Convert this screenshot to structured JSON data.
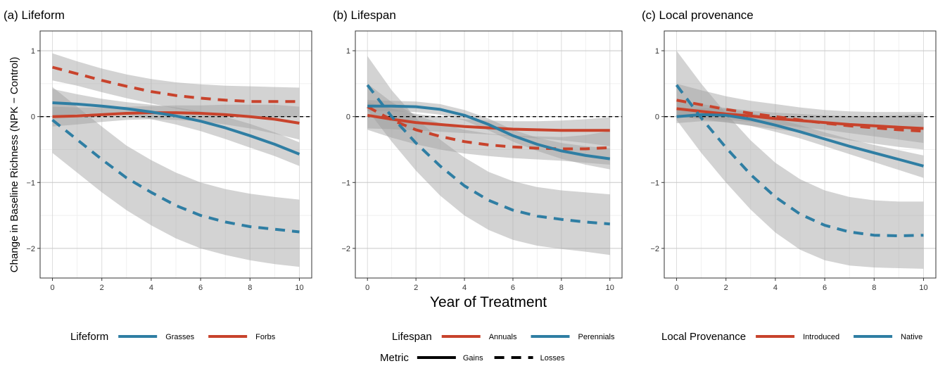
{
  "figure": {
    "ylabel": "Change in Baseline Richness (NPK − Control)",
    "xlabel": "Year of Treatment"
  },
  "colors": {
    "red": "#c8432c",
    "blue": "#2f7ea3",
    "ribbon": "#9e9e9e"
  },
  "chart_data": [
    {
      "type": "line",
      "title": "(a) Lifeform",
      "xlim": [
        -0.5,
        10.5
      ],
      "ylim": [
        -2.45,
        1.3
      ],
      "xticks": [
        0,
        2,
        4,
        6,
        8,
        10
      ],
      "yticks": [
        -2,
        -1,
        0,
        1
      ],
      "x": [
        0,
        1,
        2,
        3,
        4,
        5,
        6,
        7,
        8,
        9,
        10
      ],
      "legend": {
        "title": "Lifeform",
        "items": [
          {
            "label": "Grasses",
            "color": "blue"
          },
          {
            "label": "Forbs",
            "color": "red"
          }
        ]
      },
      "series": [
        {
          "group": "Forbs",
          "metric": "Gains",
          "color": "red",
          "dashed": false,
          "values": [
            0.0,
            0.01,
            0.03,
            0.05,
            0.06,
            0.06,
            0.05,
            0.03,
            0.0,
            -0.04,
            -0.1
          ],
          "lower": [
            -0.15,
            -0.12,
            -0.08,
            -0.05,
            -0.04,
            -0.05,
            -0.07,
            -0.12,
            -0.18,
            -0.26,
            -0.35
          ],
          "upper": [
            0.15,
            0.14,
            0.14,
            0.15,
            0.16,
            0.17,
            0.17,
            0.18,
            0.18,
            0.18,
            0.15
          ]
        },
        {
          "group": "Forbs",
          "metric": "Losses",
          "color": "red",
          "dashed": true,
          "values": [
            0.75,
            0.65,
            0.55,
            0.46,
            0.38,
            0.32,
            0.28,
            0.25,
            0.23,
            0.23,
            0.23
          ],
          "lower": [
            0.55,
            0.47,
            0.37,
            0.28,
            0.2,
            0.12,
            0.06,
            0.02,
            0.0,
            -0.01,
            0.0
          ],
          "upper": [
            0.96,
            0.84,
            0.73,
            0.64,
            0.57,
            0.52,
            0.49,
            0.47,
            0.46,
            0.45,
            0.44
          ]
        },
        {
          "group": "Grasses",
          "metric": "Gains",
          "color": "blue",
          "dashed": false,
          "values": [
            0.21,
            0.19,
            0.16,
            0.12,
            0.07,
            0.01,
            -0.07,
            -0.17,
            -0.29,
            -0.42,
            -0.57
          ],
          "lower": [
            0.0,
            0.04,
            0.05,
            0.02,
            -0.04,
            -0.12,
            -0.22,
            -0.34,
            -0.47,
            -0.6,
            -0.75
          ],
          "upper": [
            0.42,
            0.34,
            0.27,
            0.22,
            0.18,
            0.14,
            0.08,
            0.0,
            -0.11,
            -0.24,
            -0.39
          ]
        },
        {
          "group": "Grasses",
          "metric": "Losses",
          "color": "blue",
          "dashed": true,
          "values": [
            -0.05,
            -0.35,
            -0.65,
            -0.93,
            -1.15,
            -1.35,
            -1.5,
            -1.6,
            -1.67,
            -1.71,
            -1.75
          ],
          "lower": [
            -0.55,
            -0.85,
            -1.15,
            -1.42,
            -1.65,
            -1.85,
            -2.0,
            -2.1,
            -2.18,
            -2.24,
            -2.28
          ],
          "upper": [
            0.45,
            0.15,
            -0.15,
            -0.44,
            -0.66,
            -0.85,
            -1.0,
            -1.1,
            -1.17,
            -1.22,
            -1.26
          ]
        }
      ]
    },
    {
      "type": "line",
      "title": "(b) Lifespan",
      "xlim": [
        -0.5,
        10.5
      ],
      "ylim": [
        -2.45,
        1.3
      ],
      "xticks": [
        0,
        2,
        4,
        6,
        8,
        10
      ],
      "yticks": [
        -2,
        -1,
        0,
        1
      ],
      "x": [
        0,
        1,
        2,
        3,
        4,
        5,
        6,
        7,
        8,
        9,
        10
      ],
      "legend": {
        "title": "Lifespan",
        "items": [
          {
            "label": "Annuals",
            "color": "red"
          },
          {
            "label": "Perennials",
            "color": "blue"
          }
        ]
      },
      "series": [
        {
          "group": "Annuals",
          "metric": "Gains",
          "color": "red",
          "dashed": false,
          "values": [
            0.02,
            -0.04,
            -0.09,
            -0.12,
            -0.15,
            -0.17,
            -0.19,
            -0.2,
            -0.21,
            -0.21,
            -0.21
          ],
          "lower": [
            -0.18,
            -0.19,
            -0.21,
            -0.23,
            -0.25,
            -0.27,
            -0.3,
            -0.33,
            -0.36,
            -0.4,
            -0.45
          ],
          "upper": [
            0.22,
            0.12,
            0.04,
            0.0,
            -0.04,
            -0.06,
            -0.07,
            -0.07,
            -0.06,
            -0.04,
            -0.01
          ]
        },
        {
          "group": "Annuals",
          "metric": "Losses",
          "color": "red",
          "dashed": true,
          "values": [
            0.15,
            -0.05,
            -0.2,
            -0.3,
            -0.38,
            -0.43,
            -0.46,
            -0.48,
            -0.49,
            -0.49,
            -0.47
          ],
          "lower": [
            -0.2,
            -0.32,
            -0.42,
            -0.5,
            -0.56,
            -0.6,
            -0.63,
            -0.65,
            -0.67,
            -0.7,
            -0.73
          ],
          "upper": [
            0.5,
            0.22,
            0.02,
            -0.1,
            -0.2,
            -0.26,
            -0.29,
            -0.3,
            -0.31,
            -0.28,
            -0.22
          ]
        },
        {
          "group": "Perennials",
          "metric": "Gains",
          "color": "blue",
          "dashed": false,
          "values": [
            0.16,
            0.16,
            0.15,
            0.11,
            0.02,
            -0.12,
            -0.29,
            -0.42,
            -0.52,
            -0.59,
            -0.64
          ],
          "lower": [
            0.08,
            0.08,
            0.07,
            0.03,
            -0.06,
            -0.21,
            -0.38,
            -0.52,
            -0.64,
            -0.73,
            -0.8
          ],
          "upper": [
            0.25,
            0.24,
            0.23,
            0.19,
            0.1,
            -0.03,
            -0.2,
            -0.32,
            -0.4,
            -0.45,
            -0.48
          ]
        },
        {
          "group": "Perennials",
          "metric": "Losses",
          "color": "blue",
          "dashed": true,
          "values": [
            0.48,
            0.0,
            -0.4,
            -0.75,
            -1.05,
            -1.27,
            -1.42,
            -1.51,
            -1.56,
            -1.6,
            -1.63
          ],
          "lower": [
            0.1,
            -0.38,
            -0.82,
            -1.2,
            -1.5,
            -1.72,
            -1.87,
            -1.96,
            -2.01,
            -2.05,
            -2.1
          ],
          "upper": [
            0.92,
            0.4,
            -0.02,
            -0.35,
            -0.62,
            -0.84,
            -0.98,
            -1.07,
            -1.12,
            -1.15,
            -1.18
          ]
        }
      ]
    },
    {
      "type": "line",
      "title": "(c) Local provenance",
      "xlim": [
        -0.5,
        10.5
      ],
      "ylim": [
        -2.45,
        1.3
      ],
      "xticks": [
        0,
        2,
        4,
        6,
        8,
        10
      ],
      "yticks": [
        -2,
        -1,
        0,
        1
      ],
      "x": [
        0,
        1,
        2,
        3,
        4,
        5,
        6,
        7,
        8,
        9,
        10
      ],
      "legend": {
        "title": "Local Provenance",
        "items": [
          {
            "label": "Introduced",
            "color": "red"
          },
          {
            "label": "Native",
            "color": "blue"
          }
        ]
      },
      "series": [
        {
          "group": "Introduced",
          "metric": "Gains",
          "color": "red",
          "dashed": false,
          "values": [
            0.12,
            0.08,
            0.04,
            0.01,
            -0.03,
            -0.06,
            -0.09,
            -0.12,
            -0.14,
            -0.16,
            -0.18
          ],
          "lower": [
            0.0,
            -0.02,
            -0.05,
            -0.08,
            -0.12,
            -0.16,
            -0.2,
            -0.25,
            -0.3,
            -0.35,
            -0.4
          ],
          "upper": [
            0.25,
            0.19,
            0.13,
            0.09,
            0.06,
            0.04,
            0.02,
            0.01,
            0.01,
            0.02,
            0.04
          ]
        },
        {
          "group": "Introduced",
          "metric": "Losses",
          "color": "red",
          "dashed": true,
          "values": [
            0.25,
            0.18,
            0.11,
            0.05,
            0.0,
            -0.05,
            -0.1,
            -0.14,
            -0.17,
            -0.2,
            -0.22
          ],
          "lower": [
            0.0,
            -0.04,
            -0.09,
            -0.14,
            -0.19,
            -0.24,
            -0.3,
            -0.36,
            -0.41,
            -0.46,
            -0.5
          ],
          "upper": [
            0.5,
            0.4,
            0.31,
            0.24,
            0.19,
            0.14,
            0.1,
            0.08,
            0.07,
            0.07,
            0.07
          ]
        },
        {
          "group": "Native",
          "metric": "Gains",
          "color": "blue",
          "dashed": false,
          "values": [
            0.0,
            0.03,
            0.02,
            -0.04,
            -0.13,
            -0.23,
            -0.34,
            -0.45,
            -0.55,
            -0.65,
            -0.75
          ],
          "lower": [
            -0.1,
            -0.07,
            -0.08,
            -0.14,
            -0.23,
            -0.33,
            -0.45,
            -0.57,
            -0.69,
            -0.81,
            -0.93
          ],
          "upper": [
            0.1,
            0.13,
            0.12,
            0.06,
            -0.03,
            -0.13,
            -0.24,
            -0.34,
            -0.43,
            -0.51,
            -0.59
          ]
        },
        {
          "group": "Native",
          "metric": "Losses",
          "color": "blue",
          "dashed": true,
          "values": [
            0.48,
            -0.02,
            -0.47,
            -0.88,
            -1.22,
            -1.48,
            -1.65,
            -1.75,
            -1.8,
            -1.81,
            -1.8
          ],
          "lower": [
            -0.05,
            -0.55,
            -1.0,
            -1.41,
            -1.76,
            -2.02,
            -2.18,
            -2.26,
            -2.29,
            -2.3,
            -2.31
          ],
          "upper": [
            1.0,
            0.5,
            0.05,
            -0.36,
            -0.7,
            -0.95,
            -1.12,
            -1.22,
            -1.27,
            -1.29,
            -1.29
          ]
        }
      ]
    }
  ],
  "metric_legend": {
    "title": "Metric",
    "items": [
      {
        "label": "Gains",
        "dashed": false
      },
      {
        "label": "Losses",
        "dashed": true
      }
    ]
  }
}
